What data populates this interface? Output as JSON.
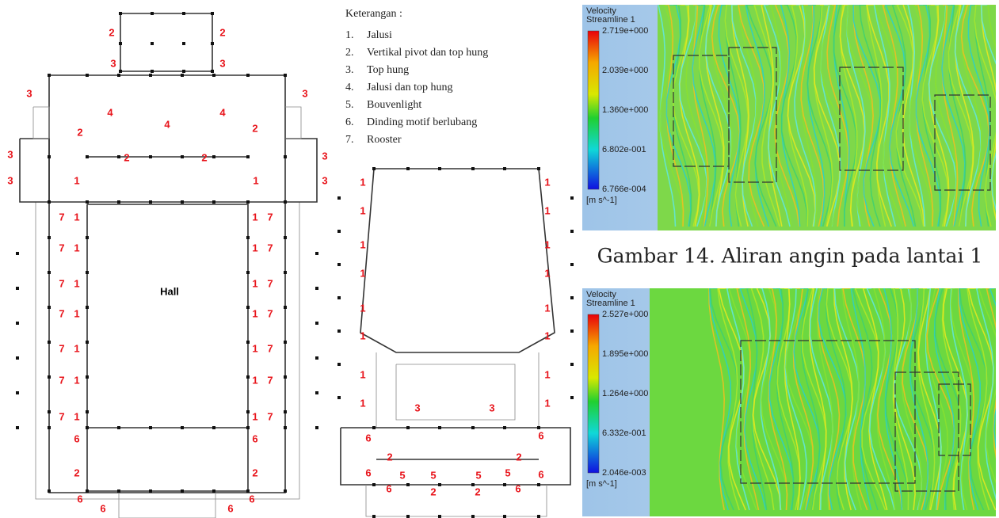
{
  "legend": {
    "title": "Keterangan :",
    "items": [
      {
        "number": "1.",
        "text": "Jalusi"
      },
      {
        "number": "2.",
        "text": "Vertikal pivot dan top hung"
      },
      {
        "number": "3.",
        "text": "Top hung"
      },
      {
        "number": "4.",
        "text": "Jalusi dan top hung"
      },
      {
        "number": "5.",
        "text": "Bouvenlight"
      },
      {
        "number": "6.",
        "text": "Dinding motif berlubang"
      },
      {
        "number": "7.",
        "text": "Rooster"
      }
    ]
  },
  "plan_1": {
    "room_label": "Hall",
    "labels": [
      "2",
      "2",
      "3",
      "3",
      "3",
      "3",
      "4",
      "4",
      "4",
      "2",
      "2",
      "3",
      "3",
      "2",
      "2",
      "3",
      "3",
      "1",
      "1",
      "7",
      "1",
      "1",
      "7",
      "7",
      "1",
      "1",
      "7",
      "7",
      "1",
      "1",
      "7",
      "7",
      "1",
      "1",
      "7",
      "7",
      "1",
      "1",
      "7",
      "7",
      "1",
      "1",
      "7",
      "7",
      "1",
      "1",
      "7",
      "6",
      "6",
      "2",
      "2",
      "6",
      "6",
      "6",
      "6"
    ]
  },
  "plan_2": {
    "labels": [
      "1",
      "1",
      "1",
      "1",
      "1",
      "1",
      "1",
      "1",
      "1",
      "1",
      "1",
      "1",
      "1",
      "1",
      "1",
      "1",
      "3",
      "3",
      "6",
      "6",
      "2",
      "2",
      "6",
      "6",
      "5",
      "5",
      "5",
      "5",
      "6",
      "6",
      "2",
      "2"
    ]
  },
  "cfd_1": {
    "title": "Velocity",
    "subtitle": "Streamline 1",
    "scale_labels": [
      "2.719e+000",
      "2.039e+000",
      "1.360e+000",
      "6.802e-001",
      "6.766e-004"
    ],
    "unit": "[m s^-1]"
  },
  "cfd_2": {
    "title": "Velocity",
    "subtitle": "Streamline 1",
    "scale_labels": [
      "2.527e+000",
      "1.895e+000",
      "1.264e+000",
      "6.332e-001",
      "2.046e-003"
    ],
    "unit": "[m s^-1]"
  },
  "caption": "Gambar 14. Aliran angin pada lantai 1"
}
